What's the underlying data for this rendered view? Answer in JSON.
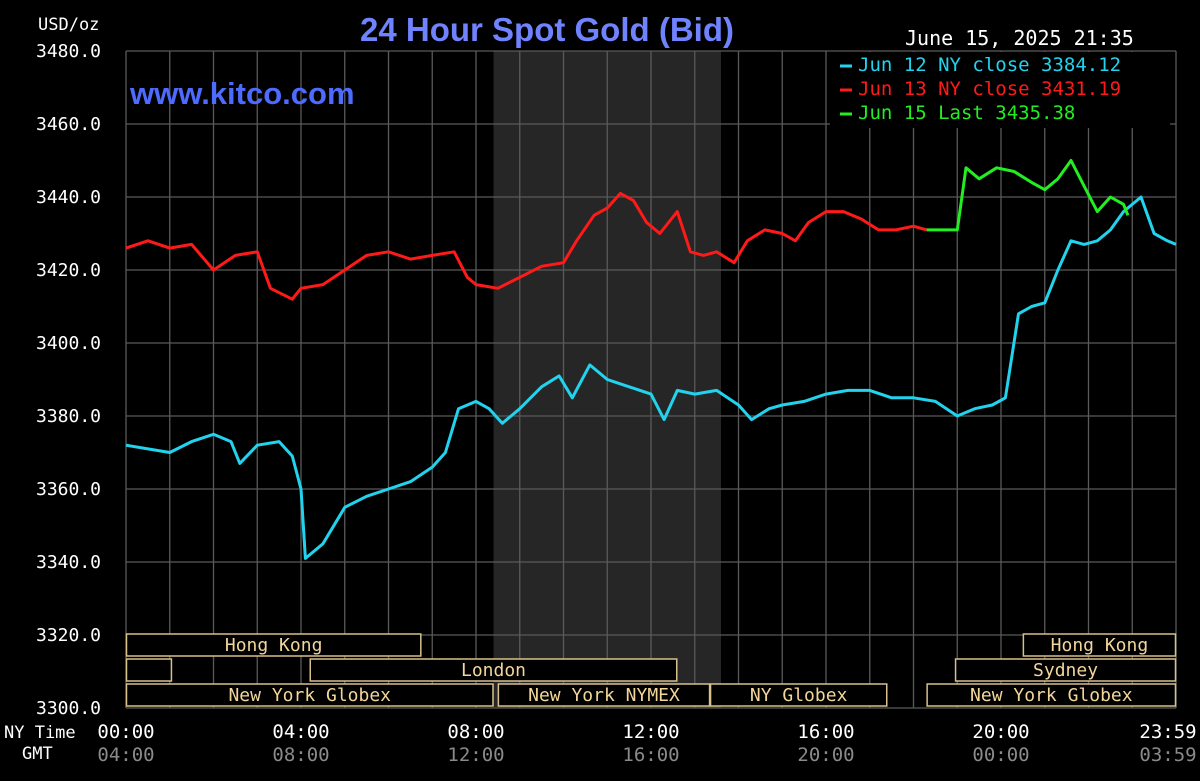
{
  "header": {
    "title": "24 Hour Spot Gold (Bid)",
    "units": "USD/oz",
    "timestamp": "June 15, 2025 21:35",
    "watermark": "www.kitco.com"
  },
  "colors": {
    "background": "#000000",
    "grid": "#5a5a5a",
    "title": "#6f83ff",
    "watermark": "#4d6bff",
    "axis_text": "#ffffff",
    "gmt_text": "#8a8a8a",
    "session_text": "#f2d69a",
    "session_border": "#d8c08a",
    "shade": "#262626",
    "series": [
      "#22d3ee",
      "#ff1a1a",
      "#22ee22"
    ]
  },
  "axis_rows": {
    "ny_label": "NY Time",
    "gmt_label": "GMT"
  },
  "sessions": [
    {
      "label": "Hong Kong",
      "start": 0.0,
      "end": 6.75,
      "row": 0
    },
    {
      "label": "",
      "start": 0.0,
      "end": 1.05,
      "row": 1
    },
    {
      "label": "London",
      "start": 4.2,
      "end": 12.6,
      "row": 1
    },
    {
      "label": "New York Globex",
      "start": 0.0,
      "end": 8.4,
      "row": 2
    },
    {
      "label": "New York NYMEX",
      "start": 8.5,
      "end": 13.35,
      "row": 2
    },
    {
      "label": "NY Globex",
      "start": 13.35,
      "end": 17.4,
      "row": 2
    },
    {
      "label": "Hong Kong",
      "start": 20.5,
      "end": 24.0,
      "row": 0
    },
    {
      "label": "Sydney",
      "start": 18.95,
      "end": 24.0,
      "row": 1
    },
    {
      "label": "New York Globex",
      "start": 18.3,
      "end": 24.0,
      "row": 2
    }
  ],
  "chart_data": {
    "type": "line",
    "x_unit": "NY time (hours)",
    "xlim": [
      0,
      24
    ],
    "ylim": [
      3300,
      3480
    ],
    "y_ticks": [
      "3300.0",
      "3320.0",
      "3340.0",
      "3360.0",
      "3380.0",
      "3400.0",
      "3420.0",
      "3440.0",
      "3460.0",
      "3480.0"
    ],
    "x_ticks_ny": [
      "00:00",
      "04:00",
      "08:00",
      "12:00",
      "16:00",
      "20:00",
      "23:59"
    ],
    "x_ticks_gmt": [
      "04:00",
      "08:00",
      "12:00",
      "16:00",
      "20:00",
      "00:00",
      "03:59"
    ],
    "shaded_range": [
      8.4,
      13.6
    ],
    "legend_position": "top-right",
    "series": [
      {
        "name": "Jun 12 NY close 3384.12",
        "points": [
          [
            0,
            3372
          ],
          [
            0.5,
            3371
          ],
          [
            1,
            3370
          ],
          [
            1.5,
            3373
          ],
          [
            2,
            3375
          ],
          [
            2.4,
            3373
          ],
          [
            2.6,
            3367
          ],
          [
            3.0,
            3372
          ],
          [
            3.5,
            3373
          ],
          [
            3.8,
            3369
          ],
          [
            4.0,
            3360
          ],
          [
            4.1,
            3341
          ],
          [
            4.5,
            3345
          ],
          [
            5.0,
            3355
          ],
          [
            5.5,
            3358
          ],
          [
            6.0,
            3360
          ],
          [
            6.5,
            3362
          ],
          [
            7.0,
            3366
          ],
          [
            7.3,
            3370
          ],
          [
            7.6,
            3382
          ],
          [
            8.0,
            3384
          ],
          [
            8.3,
            3382
          ],
          [
            8.6,
            3378
          ],
          [
            9.0,
            3382
          ],
          [
            9.5,
            3388
          ],
          [
            9.9,
            3391
          ],
          [
            10.2,
            3385
          ],
          [
            10.6,
            3394
          ],
          [
            11.0,
            3390
          ],
          [
            11.5,
            3388
          ],
          [
            12.0,
            3386
          ],
          [
            12.3,
            3379
          ],
          [
            12.6,
            3387
          ],
          [
            13.0,
            3386
          ],
          [
            13.5,
            3387
          ],
          [
            14.0,
            3383
          ],
          [
            14.3,
            3379
          ],
          [
            14.7,
            3382
          ],
          [
            15.0,
            3383
          ],
          [
            15.5,
            3384
          ],
          [
            16.0,
            3386
          ],
          [
            16.5,
            3387
          ],
          [
            17.0,
            3387
          ],
          [
            17.5,
            3385
          ],
          [
            18.0,
            3385
          ],
          [
            18.5,
            3384
          ],
          [
            19.0,
            3380
          ],
          [
            19.4,
            3382
          ],
          [
            19.8,
            3383
          ],
          [
            20.1,
            3385
          ],
          [
            20.4,
            3408
          ],
          [
            20.7,
            3410
          ],
          [
            21.0,
            3411
          ],
          [
            21.3,
            3420
          ],
          [
            21.6,
            3428
          ],
          [
            21.9,
            3427
          ],
          [
            22.2,
            3428
          ],
          [
            22.5,
            3431
          ],
          [
            22.8,
            3436
          ],
          [
            23.2,
            3440
          ],
          [
            23.5,
            3430
          ],
          [
            23.8,
            3428
          ],
          [
            24.0,
            3427
          ]
        ]
      },
      {
        "name": "Jun 13 NY close 3431.19",
        "points": [
          [
            0,
            3426
          ],
          [
            0.5,
            3428
          ],
          [
            1,
            3426
          ],
          [
            1.5,
            3427
          ],
          [
            2,
            3420
          ],
          [
            2.5,
            3424
          ],
          [
            3.0,
            3425
          ],
          [
            3.3,
            3415
          ],
          [
            3.8,
            3412
          ],
          [
            4.0,
            3415
          ],
          [
            4.5,
            3416
          ],
          [
            5.0,
            3420
          ],
          [
            5.5,
            3424
          ],
          [
            6.0,
            3425
          ],
          [
            6.5,
            3423
          ],
          [
            7.0,
            3424
          ],
          [
            7.5,
            3425
          ],
          [
            7.8,
            3418
          ],
          [
            8.0,
            3416
          ],
          [
            8.5,
            3415
          ],
          [
            9.0,
            3418
          ],
          [
            9.5,
            3421
          ],
          [
            10.0,
            3422
          ],
          [
            10.3,
            3428
          ],
          [
            10.7,
            3435
          ],
          [
            11.0,
            3437
          ],
          [
            11.3,
            3441
          ],
          [
            11.6,
            3439
          ],
          [
            11.9,
            3433
          ],
          [
            12.2,
            3430
          ],
          [
            12.6,
            3436
          ],
          [
            12.9,
            3425
          ],
          [
            13.2,
            3424
          ],
          [
            13.5,
            3425
          ],
          [
            13.9,
            3422
          ],
          [
            14.2,
            3428
          ],
          [
            14.6,
            3431
          ],
          [
            15.0,
            3430
          ],
          [
            15.3,
            3428
          ],
          [
            15.6,
            3433
          ],
          [
            16.0,
            3436
          ],
          [
            16.4,
            3436
          ],
          [
            16.8,
            3434
          ],
          [
            17.2,
            3431
          ],
          [
            17.6,
            3431
          ],
          [
            18.0,
            3432
          ],
          [
            18.3,
            3431
          ]
        ]
      },
      {
        "name": "Jun 15 Last 3435.38",
        "points": [
          [
            18.3,
            3431
          ],
          [
            19.0,
            3431
          ],
          [
            19.2,
            3448
          ],
          [
            19.5,
            3445
          ],
          [
            19.9,
            3448
          ],
          [
            20.3,
            3447
          ],
          [
            20.7,
            3444
          ],
          [
            21.0,
            3442
          ],
          [
            21.3,
            3445
          ],
          [
            21.6,
            3450
          ],
          [
            21.9,
            3443
          ],
          [
            22.2,
            3436
          ],
          [
            22.5,
            3440
          ],
          [
            22.8,
            3438
          ],
          [
            22.9,
            3435
          ]
        ]
      }
    ]
  }
}
